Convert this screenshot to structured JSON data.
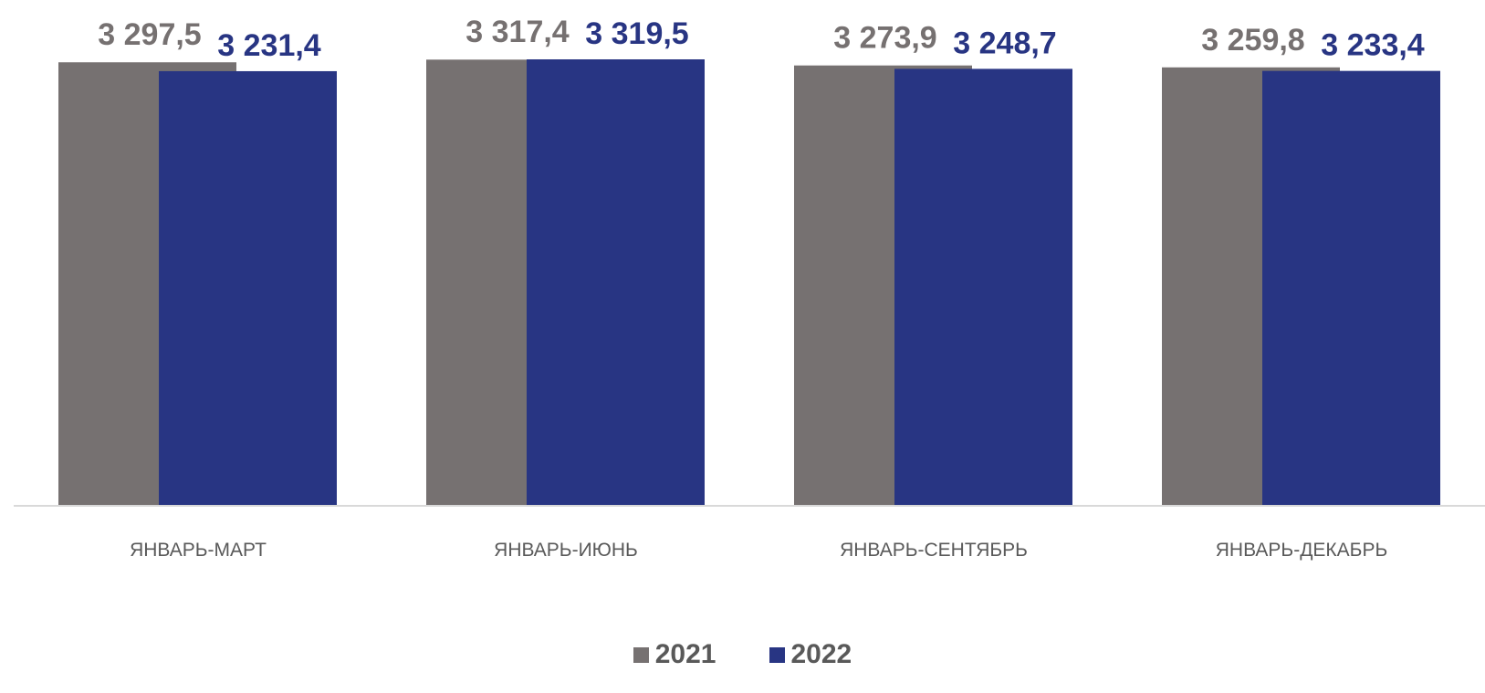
{
  "chart_data": {
    "type": "bar",
    "categories": [
      "ЯНВАРЬ-МАРТ",
      "ЯНВАРЬ-ИЮНЬ",
      "ЯНВАРЬ-СЕНТЯБРЬ",
      "ЯНВАРЬ-ДЕКАБРЬ"
    ],
    "series": [
      {
        "name": "2021",
        "values": [
          3297.5,
          3317.4,
          3273.9,
          3259.8
        ],
        "labels": [
          "3 297,5",
          "3 317,4",
          "3 273,9",
          "3 259,8"
        ],
        "color": "#767171",
        "label_color": "#767171"
      },
      {
        "name": "2022",
        "values": [
          3231.4,
          3319.5,
          3248.7,
          3233.4
        ],
        "labels": [
          "3 231,4",
          "3 319,5",
          "3 248,7",
          "3 233,4"
        ],
        "color": "#283583",
        "label_color": "#283583"
      }
    ],
    "title": "",
    "xlabel": "",
    "ylabel": "",
    "ylim": [
      0,
      3319.5
    ],
    "grid": false,
    "legend": "bottom-center",
    "overlap_bars": true
  }
}
